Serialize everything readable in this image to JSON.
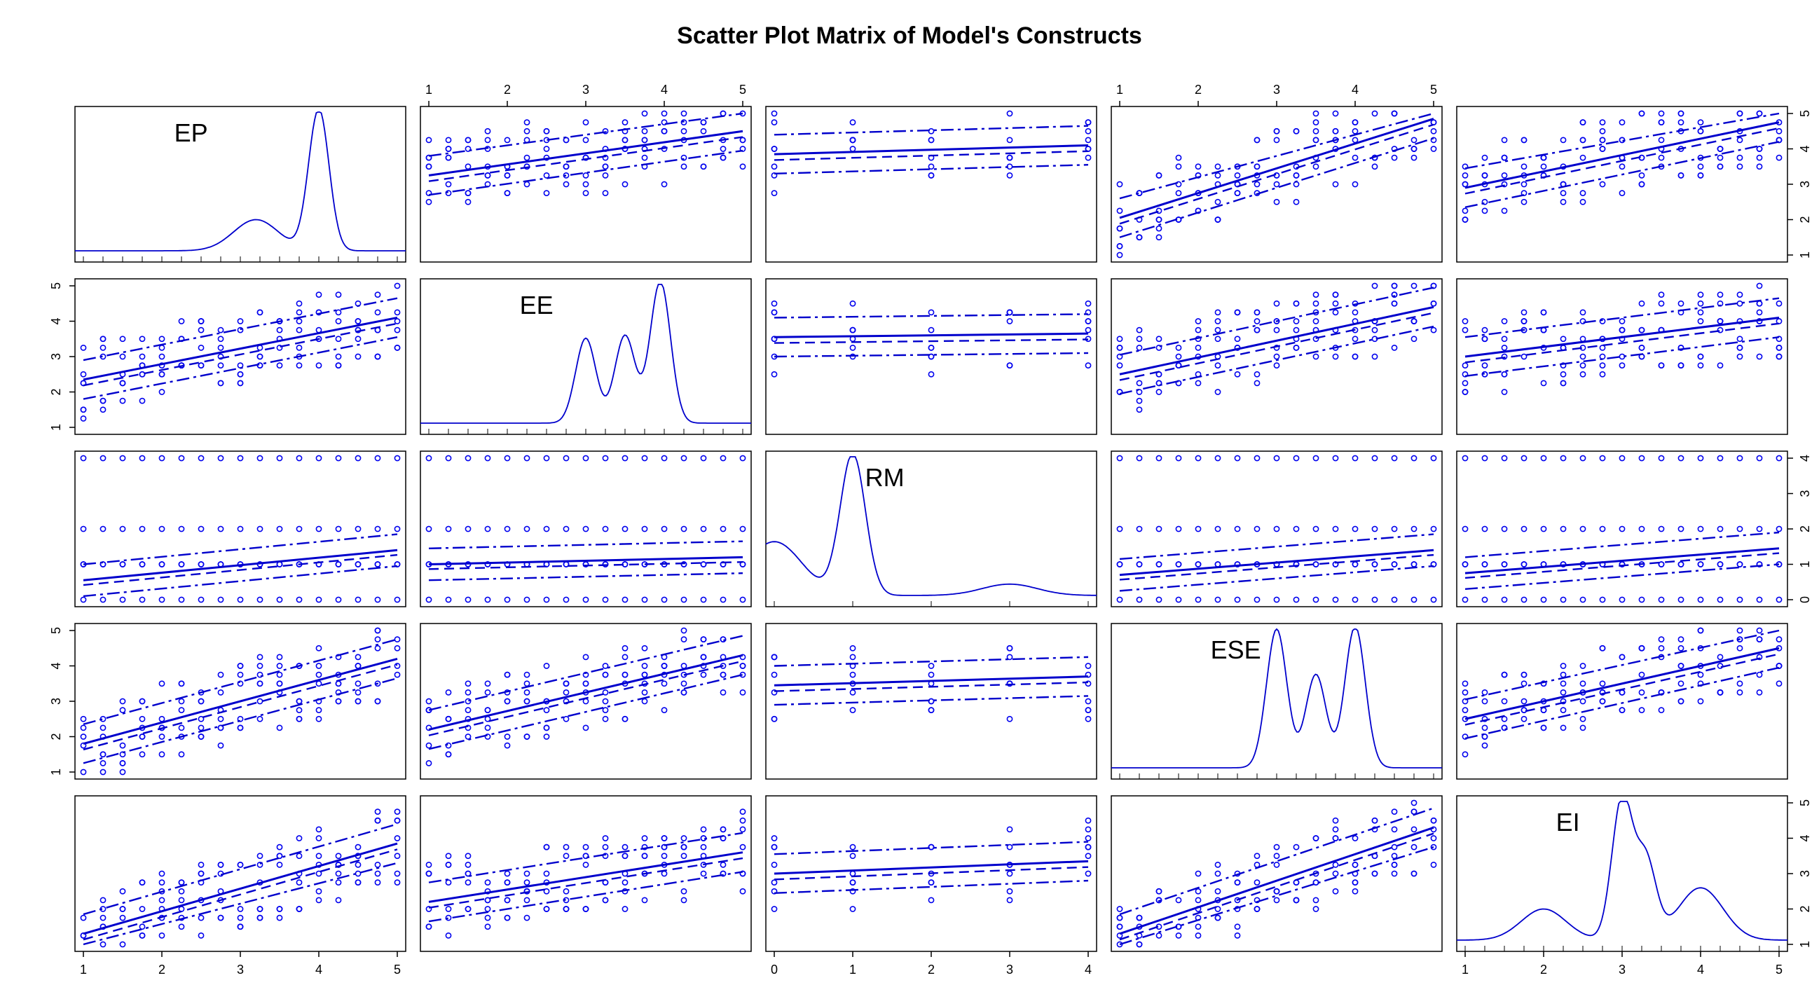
{
  "title": "Scatter Plot Matrix of Model's Constructs",
  "colors": {
    "points": "#0000ee",
    "lines": "#0000cc",
    "frame": "#000000"
  },
  "chart_data": {
    "type": "scatter",
    "variables": [
      {
        "name": "EP",
        "range": [
          1,
          5
        ],
        "ticks": [
          1,
          2,
          3,
          4,
          5
        ]
      },
      {
        "name": "EE",
        "range": [
          1,
          5
        ],
        "ticks": [
          1,
          2,
          3,
          4,
          5
        ]
      },
      {
        "name": "RM",
        "range": [
          0,
          4
        ],
        "ticks": [
          0,
          1,
          2,
          3,
          4
        ]
      },
      {
        "name": "ESE",
        "range": [
          1,
          5
        ],
        "ticks": [
          1,
          2,
          3,
          4,
          5
        ]
      },
      {
        "name": "EI",
        "range": [
          1,
          5
        ],
        "ticks": [
          1,
          2,
          3,
          4,
          5
        ]
      }
    ],
    "diagonal": "kernel density with rug",
    "densities": {
      "EP": {
        "peaks": [
          [
            3.2,
            0.22
          ],
          [
            4.0,
            1.0
          ]
        ]
      },
      "EE": {
        "peaks": [
          [
            3.0,
            0.6
          ],
          [
            3.5,
            0.62
          ],
          [
            3.95,
            1.0
          ]
        ]
      },
      "RM": {
        "peaks": [
          [
            0.0,
            0.38
          ],
          [
            1.0,
            1.0
          ],
          [
            3.0,
            0.08
          ]
        ]
      },
      "ESE": {
        "peaks": [
          [
            3.0,
            0.98
          ],
          [
            3.5,
            0.66
          ],
          [
            4.0,
            1.0
          ]
        ]
      },
      "EI": {
        "peaks": [
          [
            2.0,
            0.22
          ],
          [
            3.0,
            1.0
          ],
          [
            3.3,
            0.56
          ],
          [
            4.0,
            0.37
          ]
        ]
      }
    },
    "off_diagonal": "scatter with linear fit (solid), loess smooth (dashed), spread bands (dash-dot)",
    "fits": [
      {
        "x": "EE",
        "y": "EP",
        "fit_at_min": 3.25,
        "fit_at_max": 4.5
      },
      {
        "x": "RM",
        "y": "EP",
        "fit_at_min": 3.85,
        "fit_at_max": 4.1
      },
      {
        "x": "ESE",
        "y": "EP",
        "fit_at_min": 2.05,
        "fit_at_max": 4.85
      },
      {
        "x": "EI",
        "y": "EP",
        "fit_at_min": 2.9,
        "fit_at_max": 4.75
      },
      {
        "x": "EP",
        "y": "EE",
        "fit_at_min": 2.35,
        "fit_at_max": 4.1
      },
      {
        "x": "RM",
        "y": "EE",
        "fit_at_min": 3.55,
        "fit_at_max": 3.65
      },
      {
        "x": "ESE",
        "y": "EE",
        "fit_at_min": 2.5,
        "fit_at_max": 4.4
      },
      {
        "x": "EI",
        "y": "EE",
        "fit_at_min": 3.0,
        "fit_at_max": 4.1
      },
      {
        "x": "EP",
        "y": "RM",
        "fit_at_min": 0.55,
        "fit_at_max": 1.4
      },
      {
        "x": "EE",
        "y": "RM",
        "fit_at_min": 1.0,
        "fit_at_max": 1.2
      },
      {
        "x": "ESE",
        "y": "RM",
        "fit_at_min": 0.7,
        "fit_at_max": 1.4
      },
      {
        "x": "EI",
        "y": "RM",
        "fit_at_min": 0.75,
        "fit_at_max": 1.45
      },
      {
        "x": "EP",
        "y": "ESE",
        "fit_at_min": 1.8,
        "fit_at_max": 4.2
      },
      {
        "x": "EE",
        "y": "ESE",
        "fit_at_min": 2.2,
        "fit_at_max": 4.3
      },
      {
        "x": "RM",
        "y": "ESE",
        "fit_at_min": 3.45,
        "fit_at_max": 3.7
      },
      {
        "x": "EI",
        "y": "ESE",
        "fit_at_min": 2.5,
        "fit_at_max": 4.5
      },
      {
        "x": "EP",
        "y": "EI",
        "fit_at_min": 1.3,
        "fit_at_max": 3.85
      },
      {
        "x": "EE",
        "y": "EI",
        "fit_at_min": 2.2,
        "fit_at_max": 3.6
      },
      {
        "x": "RM",
        "y": "EI",
        "fit_at_min": 3.0,
        "fit_at_max": 3.35
      },
      {
        "x": "ESE",
        "y": "EI",
        "fit_at_min": 1.3,
        "fit_at_max": 4.3
      }
    ]
  }
}
